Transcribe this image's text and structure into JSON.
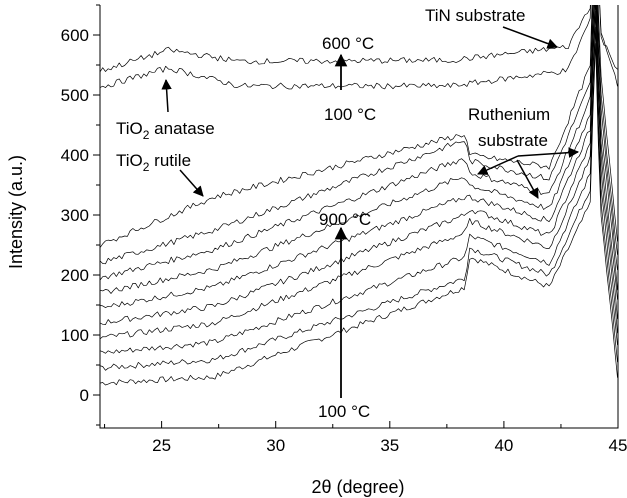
{
  "chart_data": {
    "type": "line",
    "xlabel": "2θ (degree)",
    "ylabel": "Intensity (a.u.)",
    "xlim": [
      22.3,
      45
    ],
    "ylim": [
      -55,
      650
    ],
    "grid": false,
    "legend": "none",
    "x_ticks": [
      25,
      30,
      35,
      40,
      45
    ],
    "y_ticks": [
      0,
      100,
      200,
      300,
      400,
      500,
      600
    ],
    "annotations": {
      "tin_substrate": "TiN substrate",
      "t600": "600 °C",
      "t100_top": "100 °C",
      "anatase_main": "TiO",
      "anatase_sub": "2",
      "anatase_rest": " anatase",
      "rutile_main": "TiO",
      "rutile_sub": "2",
      "rutile_rest": " rutile",
      "ruthenium_line1": "Ruthenium",
      "ruthenium_line2": "substrate",
      "t900": "900 °C",
      "t100_bottom": "100 °C"
    },
    "group_tin": {
      "x": [
        22.3,
        25.3,
        28.4,
        37.7,
        42.8,
        43.8,
        44.0,
        44.2,
        45
      ],
      "series": [
        {
          "baseline": 513,
          "values": [
            0,
            32,
            2,
            2,
            28,
            115,
            400,
            100,
            2
          ]
        },
        {
          "baseline": 540,
          "values": [
            0,
            35,
            16,
            18,
            40,
            110,
            360,
            60,
            2
          ]
        }
      ]
    },
    "group_ru": {
      "x": [
        22.3,
        27.3,
        38.3,
        38.5,
        42.0,
        43.8,
        44.0,
        44.2,
        45
      ],
      "series": [
        {
          "baseline": 20,
          "values": [
            0,
            10,
            160,
            210,
            160,
            300,
            600,
            300,
            2
          ]
        },
        {
          "baseline": 45,
          "values": [
            0,
            14,
            150,
            200,
            155,
            300,
            600,
            300,
            2
          ]
        },
        {
          "baseline": 70,
          "values": [
            0,
            18,
            160,
            195,
            150,
            300,
            600,
            300,
            2
          ]
        },
        {
          "baseline": 95,
          "values": [
            0,
            25,
            175,
            195,
            150,
            300,
            600,
            300,
            2
          ]
        },
        {
          "baseline": 120,
          "values": [
            0,
            28,
            180,
            190,
            145,
            300,
            600,
            300,
            2
          ]
        },
        {
          "baseline": 145,
          "values": [
            0,
            35,
            185,
            185,
            145,
            300,
            600,
            300,
            2
          ]
        },
        {
          "baseline": 170,
          "values": [
            0,
            40,
            195,
            180,
            140,
            300,
            600,
            300,
            2
          ]
        },
        {
          "baseline": 195,
          "values": [
            0,
            48,
            200,
            175,
            140,
            300,
            600,
            300,
            2
          ]
        },
        {
          "baseline": 220,
          "values": [
            0,
            55,
            205,
            170,
            140,
            300,
            600,
            300,
            2
          ]
        },
        {
          "baseline": 250,
          "values": [
            0,
            80,
            185,
            150,
            130,
            300,
            600,
            300,
            2
          ]
        }
      ]
    }
  }
}
